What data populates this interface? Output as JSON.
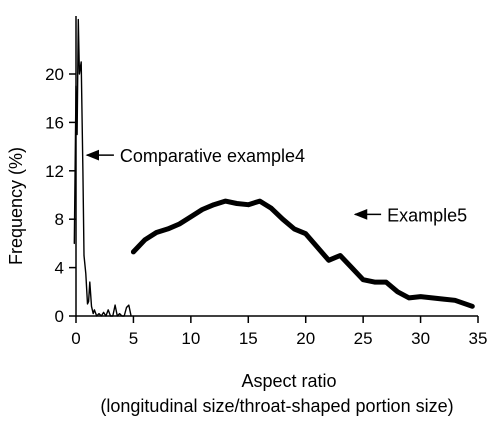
{
  "chart_data": {
    "type": "line",
    "title": "",
    "xlabel": "Aspect ratio",
    "xlabel2": "(longitudinal size/throat-shaped portion size)",
    "ylabel": "Frequency (%)",
    "xlim": [
      0,
      35
    ],
    "ylim": [
      0,
      24
    ],
    "xticks": [
      0,
      5,
      10,
      15,
      20,
      25,
      30,
      35
    ],
    "yticks": [
      0,
      4,
      8,
      12,
      16,
      20
    ],
    "grid": false,
    "legend": "none",
    "series": [
      {
        "name": "Comparative example4",
        "color": "#000000",
        "weight": "thin",
        "x": [
          -0.15,
          0.0,
          0.1,
          0.2,
          0.3,
          0.45,
          0.6,
          0.7,
          0.85,
          1.0,
          1.1,
          1.2,
          1.35,
          1.5,
          1.6,
          1.8,
          2.0,
          2.2,
          2.4,
          2.6,
          2.8,
          3.0,
          3.2,
          3.4,
          3.6,
          3.8,
          4.0,
          4.2,
          4.4,
          4.6,
          4.8
        ],
        "y": [
          6.0,
          19.0,
          15.0,
          24.5,
          20.0,
          21.0,
          12.0,
          5.0,
          3.5,
          1.0,
          1.2,
          2.8,
          0.8,
          0.2,
          0.5,
          0.0,
          0.2,
          0.0,
          0.3,
          0.0,
          0.5,
          0.0,
          0.0,
          0.9,
          0.0,
          0.2,
          0.0,
          0.0,
          0.7,
          0.9,
          0.0
        ]
      },
      {
        "name": "Example5",
        "color": "#000000",
        "weight": "thick",
        "x": [
          5,
          6,
          7,
          8,
          9,
          10,
          11,
          12,
          13,
          14,
          15,
          16,
          17,
          18,
          19,
          20,
          21,
          22,
          23,
          24,
          25,
          26,
          27,
          28,
          29,
          30,
          31,
          32,
          33,
          34.5
        ],
        "y": [
          5.3,
          6.3,
          6.9,
          7.2,
          7.6,
          8.2,
          8.8,
          9.2,
          9.5,
          9.3,
          9.2,
          9.5,
          8.9,
          8.0,
          7.2,
          6.8,
          5.7,
          4.6,
          5.0,
          4.0,
          3.0,
          2.8,
          2.8,
          2.0,
          1.5,
          1.6,
          1.5,
          1.4,
          1.3,
          0.8
        ]
      }
    ],
    "annotations": [
      {
        "text": "Comparative example4",
        "points_to_series": "Comparative example4",
        "arrow_tip": [
          0.95,
          13.3
        ]
      },
      {
        "text": "Example5",
        "points_to_series": "Example5",
        "arrow_tip": [
          24.3,
          8.4
        ]
      }
    ]
  }
}
